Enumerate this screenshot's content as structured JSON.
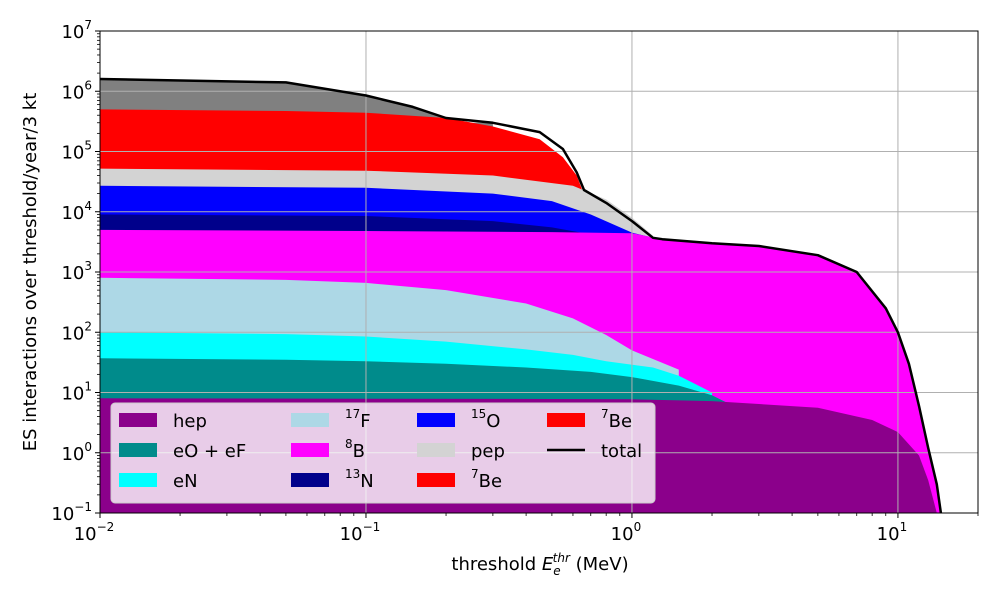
{
  "chart_data": {
    "type": "area",
    "stacked": true,
    "xlabel_main": "threshold ",
    "xlabel_math": "E",
    "xlabel_sub": "e",
    "xlabel_sup": "thr",
    "xlabel_unit": " (MeV)",
    "ylabel": "ES interactions over threshold/year/3 kt",
    "x_scale": "log",
    "y_scale": "log",
    "xlim": [
      0.01,
      20
    ],
    "ylim": [
      0.1,
      10000000
    ],
    "x_ticks": [
      {
        "value": 0.01,
        "base": "10",
        "exp": "−2"
      },
      {
        "value": 0.1,
        "base": "10",
        "exp": "−1"
      },
      {
        "value": 1,
        "base": "10",
        "exp": "0"
      },
      {
        "value": 10,
        "base": "10",
        "exp": "1"
      }
    ],
    "y_ticks": [
      {
        "value": 0.1,
        "base": "10",
        "exp": "−1"
      },
      {
        "value": 1,
        "base": "10",
        "exp": "0"
      },
      {
        "value": 10,
        "base": "10",
        "exp": "1"
      },
      {
        "value": 100,
        "base": "10",
        "exp": "2"
      },
      {
        "value": 1000,
        "base": "10",
        "exp": "3"
      },
      {
        "value": 10000,
        "base": "10",
        "exp": "4"
      },
      {
        "value": 100000,
        "base": "10",
        "exp": "5"
      },
      {
        "value": 1000000,
        "base": "10",
        "exp": "6"
      },
      {
        "value": 10000000,
        "base": "10",
        "exp": "7"
      }
    ],
    "grid": true,
    "legend_position": "lower-left",
    "legend": [
      {
        "label": "hep",
        "sup": "",
        "color": "#8b008b",
        "kind": "patch"
      },
      {
        "label": "eO + eF",
        "sup": "",
        "color": "#008b8b",
        "kind": "patch"
      },
      {
        "label": "eN",
        "sup": "",
        "color": "#00ffff",
        "kind": "patch"
      },
      {
        "label": "F",
        "sup": "17",
        "color": "#add8e6",
        "kind": "patch"
      },
      {
        "label": "B",
        "sup": "8",
        "color": "#ff00ff",
        "kind": "patch"
      },
      {
        "label": "N",
        "sup": "13",
        "color": "#00008b",
        "kind": "patch"
      },
      {
        "label": "O",
        "sup": "15",
        "color": "#0000ff",
        "kind": "patch"
      },
      {
        "label": "pep",
        "sup": "",
        "color": "#d3d3d3",
        "kind": "patch"
      },
      {
        "label": "Be",
        "sup": "7",
        "color": "#ff0000",
        "kind": "patch"
      },
      {
        "label": "Be",
        "sup": "7",
        "color": "#ff0000",
        "kind": "patch"
      },
      {
        "label": "total",
        "sup": "",
        "color": "#000000",
        "kind": "line"
      }
    ],
    "series": [
      {
        "name": "hep",
        "color": "#8b008b",
        "points": [
          [
            0.01,
            8
          ],
          [
            0.1,
            7.9
          ],
          [
            0.5,
            7.8
          ],
          [
            1,
            7.7
          ],
          [
            2,
            7.2
          ],
          [
            5,
            5.6
          ],
          [
            8,
            3.5
          ],
          [
            10,
            2.2
          ],
          [
            12,
            0.9
          ],
          [
            13,
            0.35
          ],
          [
            14,
            0.1
          ]
        ]
      },
      {
        "name": "eO + eF",
        "color": "#008b8b",
        "points": [
          [
            0.01,
            37
          ],
          [
            0.05,
            35
          ],
          [
            0.1,
            33
          ],
          [
            0.2,
            30
          ],
          [
            0.4,
            26
          ],
          [
            0.7,
            22
          ],
          [
            1,
            18
          ],
          [
            1.5,
            13
          ],
          [
            2,
            9
          ],
          [
            2.5,
            5.5
          ]
        ]
      },
      {
        "name": "eN",
        "color": "#00ffff",
        "points": [
          [
            0.01,
            100
          ],
          [
            0.05,
            93
          ],
          [
            0.1,
            85
          ],
          [
            0.2,
            70
          ],
          [
            0.4,
            52
          ],
          [
            0.6,
            42
          ],
          [
            0.8,
            33
          ],
          [
            1.2,
            26
          ],
          [
            1.5,
            19
          ],
          [
            2,
            10
          ]
        ]
      },
      {
        "name": "17F",
        "color": "#add8e6",
        "points": [
          [
            0.01,
            800
          ],
          [
            0.05,
            740
          ],
          [
            0.1,
            660
          ],
          [
            0.2,
            500
          ],
          [
            0.4,
            300
          ],
          [
            0.6,
            170
          ],
          [
            0.8,
            90
          ],
          [
            1,
            50
          ],
          [
            1.5,
            24
          ]
        ]
      },
      {
        "name": "8B",
        "color": "#ff00ff",
        "points": [
          [
            0.01,
            5000
          ],
          [
            0.1,
            4800
          ],
          [
            0.5,
            4600
          ],
          [
            1,
            4400
          ],
          [
            1.3,
            3500
          ],
          [
            2,
            3000
          ],
          [
            3,
            2700
          ],
          [
            5,
            1900
          ],
          [
            7,
            1000
          ],
          [
            9,
            250
          ],
          [
            10,
            100
          ],
          [
            11,
            30
          ],
          [
            12,
            6
          ],
          [
            13,
            1.2
          ],
          [
            14,
            0.3
          ],
          [
            14.5,
            0.1
          ]
        ]
      },
      {
        "name": "13N",
        "color": "#00008b",
        "points": [
          [
            0.01,
            9000
          ],
          [
            0.1,
            8500
          ],
          [
            0.3,
            7000
          ],
          [
            0.5,
            5500
          ],
          [
            0.7,
            4200
          ],
          [
            0.9,
            3700
          ]
        ]
      },
      {
        "name": "15O",
        "color": "#0000ff",
        "points": [
          [
            0.01,
            27000
          ],
          [
            0.1,
            25000
          ],
          [
            0.3,
            20000
          ],
          [
            0.5,
            15000
          ],
          [
            0.7,
            9000
          ],
          [
            1,
            4500
          ],
          [
            1.2,
            3700
          ]
        ]
      },
      {
        "name": "pep",
        "color": "#d3d3d3",
        "points": [
          [
            0.01,
            52000
          ],
          [
            0.1,
            48000
          ],
          [
            0.3,
            40000
          ],
          [
            0.6,
            27000
          ],
          [
            0.8,
            16000
          ],
          [
            1,
            8000
          ],
          [
            1.2,
            4000
          ]
        ]
      },
      {
        "name": "7Be",
        "color": "#ff0000",
        "points": [
          [
            0.01,
            78000
          ],
          [
            0.1,
            72000
          ],
          [
            0.3,
            58000
          ],
          [
            0.5,
            44000
          ],
          [
            0.6,
            34000
          ],
          [
            0.65,
            23000
          ]
        ]
      },
      {
        "name": "7Be",
        "color": "#ff0000",
        "points": [
          [
            0.01,
            500000
          ],
          [
            0.05,
            470000
          ],
          [
            0.1,
            440000
          ],
          [
            0.2,
            360000
          ],
          [
            0.3,
            260000
          ],
          [
            0.45,
            160000
          ],
          [
            0.55,
            80000
          ],
          [
            0.62,
            40000
          ],
          [
            0.65,
            23000
          ]
        ]
      },
      {
        "name": "",
        "color": "#808080",
        "points": [
          [
            0.01,
            1600000
          ],
          [
            0.05,
            1400000
          ],
          [
            0.1,
            850000
          ],
          [
            0.15,
            550000
          ],
          [
            0.2,
            360000
          ],
          [
            0.25,
            300000
          ],
          [
            0.3,
            300000
          ]
        ]
      }
    ],
    "total": [
      [
        0.01,
        1600000
      ],
      [
        0.05,
        1400000
      ],
      [
        0.1,
        850000
      ],
      [
        0.15,
        550000
      ],
      [
        0.2,
        360000
      ],
      [
        0.3,
        300000
      ],
      [
        0.45,
        210000
      ],
      [
        0.55,
        110000
      ],
      [
        0.62,
        45000
      ],
      [
        0.66,
        23000
      ],
      [
        0.8,
        14000
      ],
      [
        1,
        7000
      ],
      [
        1.2,
        3700
      ],
      [
        1.3,
        3500
      ],
      [
        2,
        3000
      ],
      [
        3,
        2700
      ],
      [
        5,
        1900
      ],
      [
        7,
        1000
      ],
      [
        9,
        250
      ],
      [
        10,
        100
      ],
      [
        11,
        30
      ],
      [
        12,
        6
      ],
      [
        13,
        1.2
      ],
      [
        14,
        0.3
      ],
      [
        14.5,
        0.1
      ]
    ]
  }
}
